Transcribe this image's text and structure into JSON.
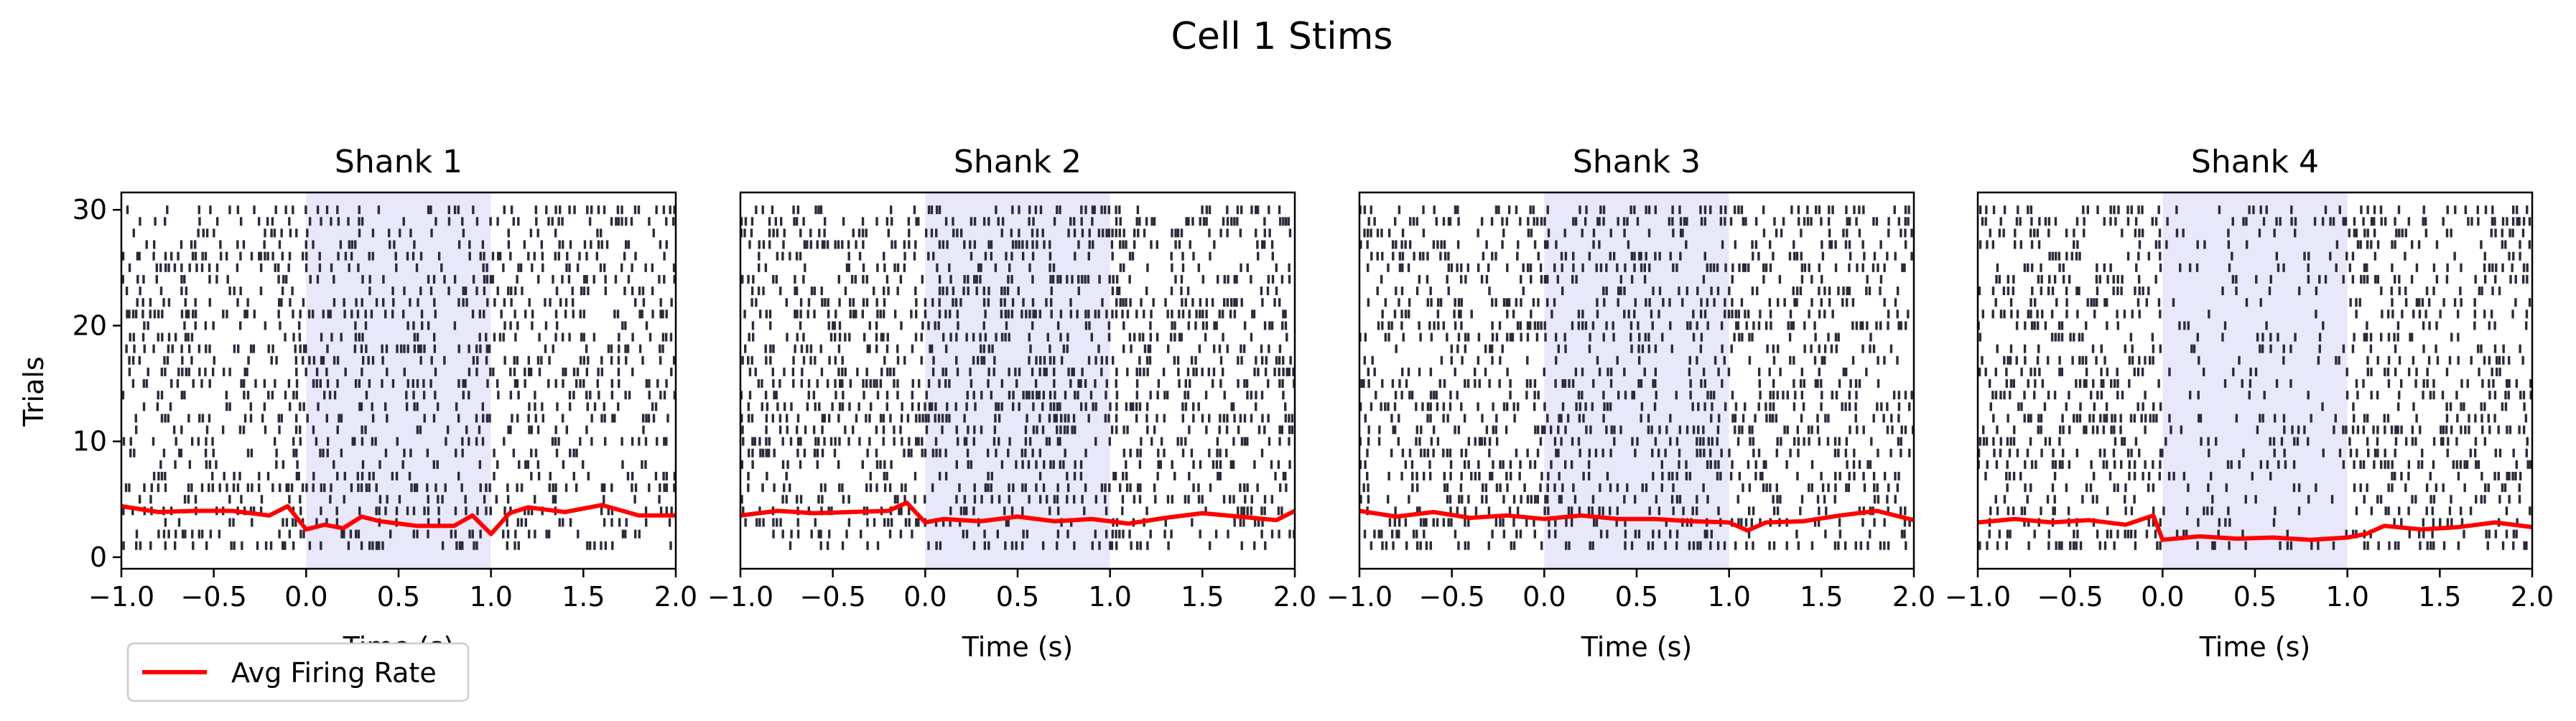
{
  "figure": {
    "suptitle": "Cell 1 Stims",
    "ylabel": "Trials",
    "legend": {
      "label": "Avg Firing Rate",
      "placement": "lower-left, below first panel",
      "line_color": "#ff0000"
    }
  },
  "colors": {
    "spike": "#2a2a3a",
    "stim_shade": "#e6e6fa",
    "rate_line": "#ff0000",
    "axes": "#000000"
  },
  "chart_data": [
    {
      "type": "raster",
      "title": "Shank 1",
      "xlabel": "Time (s)",
      "ylabel": "Trials",
      "xlim": [
        -1.0,
        2.0
      ],
      "ylim": [
        -1,
        31.5
      ],
      "xticks": [
        "−1.0",
        "−0.5",
        "0.0",
        "0.5",
        "1.0",
        "1.5",
        "2.0"
      ],
      "xtick_values": [
        -1.0,
        -0.5,
        0.0,
        0.5,
        1.0,
        1.5,
        2.0
      ],
      "yticks": [
        "0",
        "10",
        "20",
        "30"
      ],
      "ytick_values": [
        0,
        10,
        20,
        30
      ],
      "stim_window": [
        0.0,
        1.0
      ],
      "trials": 30,
      "spike_density": 0.26,
      "stim_density_factor": 0.85,
      "rate_curve": {
        "x": [
          -1.0,
          -0.8,
          -0.6,
          -0.4,
          -0.2,
          -0.1,
          0.0,
          0.1,
          0.2,
          0.3,
          0.4,
          0.6,
          0.8,
          0.9,
          1.0,
          1.1,
          1.2,
          1.4,
          1.6,
          1.8,
          2.0
        ],
        "y": [
          4.4,
          3.9,
          4.0,
          4.0,
          3.6,
          4.4,
          2.4,
          2.8,
          2.5,
          3.5,
          3.1,
          2.7,
          2.7,
          3.6,
          2.0,
          3.8,
          4.3,
          3.9,
          4.5,
          3.6,
          3.6
        ]
      }
    },
    {
      "type": "raster",
      "title": "Shank 2",
      "xlabel": "Time (s)",
      "xlim": [
        -1.0,
        2.0
      ],
      "ylim": [
        -1,
        31.5
      ],
      "xticks": [
        "−1.0",
        "−0.5",
        "0.0",
        "0.5",
        "1.0",
        "1.5",
        "2.0"
      ],
      "xtick_values": [
        -1.0,
        -0.5,
        0.0,
        0.5,
        1.0,
        1.5,
        2.0
      ],
      "stim_window": [
        0.0,
        1.0
      ],
      "trials": 30,
      "spike_density": 0.3,
      "stim_density_factor": 1.0,
      "rate_curve": {
        "x": [
          -1.0,
          -0.8,
          -0.6,
          -0.4,
          -0.2,
          -0.1,
          0.0,
          0.1,
          0.3,
          0.5,
          0.7,
          0.9,
          1.1,
          1.3,
          1.5,
          1.7,
          1.9,
          2.0
        ],
        "y": [
          3.6,
          4.0,
          3.8,
          3.9,
          4.0,
          4.7,
          3.0,
          3.3,
          3.1,
          3.5,
          3.1,
          3.3,
          2.9,
          3.4,
          3.8,
          3.5,
          3.2,
          4.0
        ]
      }
    },
    {
      "type": "raster",
      "title": "Shank 3",
      "xlabel": "Time (s)",
      "xlim": [
        -1.0,
        2.0
      ],
      "ylim": [
        -1,
        31.5
      ],
      "xticks": [
        "−1.0",
        "−0.5",
        "0.0",
        "0.5",
        "1.0",
        "1.5",
        "2.0"
      ],
      "xtick_values": [
        -1.0,
        -0.5,
        0.0,
        0.5,
        1.0,
        1.5,
        2.0
      ],
      "stim_window": [
        0.0,
        1.0
      ],
      "trials": 30,
      "spike_density": 0.3,
      "stim_density_factor": 0.9,
      "rate_curve": {
        "x": [
          -1.0,
          -0.8,
          -0.6,
          -0.4,
          -0.2,
          0.0,
          0.2,
          0.4,
          0.6,
          0.8,
          1.0,
          1.1,
          1.2,
          1.4,
          1.6,
          1.8,
          2.0
        ],
        "y": [
          4.0,
          3.5,
          3.9,
          3.4,
          3.6,
          3.3,
          3.6,
          3.3,
          3.3,
          3.1,
          3.0,
          2.3,
          3.0,
          3.1,
          3.6,
          4.0,
          3.2
        ]
      }
    },
    {
      "type": "raster",
      "title": "Shank 4",
      "xlabel": "Time (s)",
      "xlim": [
        -1.0,
        2.0
      ],
      "ylim": [
        -1,
        31.5
      ],
      "xticks": [
        "−1.0",
        "−0.5",
        "0.0",
        "0.5",
        "1.0",
        "1.5",
        "2.0"
      ],
      "xtick_values": [
        -1.0,
        -0.5,
        0.0,
        0.5,
        1.0,
        1.5,
        2.0
      ],
      "stim_window": [
        0.0,
        1.0
      ],
      "trials": 30,
      "spike_density": 0.28,
      "stim_density_factor": 0.45,
      "rate_curve": {
        "x": [
          -1.0,
          -0.8,
          -0.6,
          -0.4,
          -0.2,
          -0.05,
          0.0,
          0.2,
          0.4,
          0.6,
          0.8,
          1.0,
          1.1,
          1.2,
          1.4,
          1.6,
          1.8,
          2.0
        ],
        "y": [
          3.0,
          3.3,
          3.0,
          3.2,
          2.8,
          3.6,
          1.5,
          1.8,
          1.6,
          1.7,
          1.5,
          1.7,
          2.0,
          2.7,
          2.4,
          2.6,
          3.0,
          2.6
        ]
      }
    }
  ]
}
